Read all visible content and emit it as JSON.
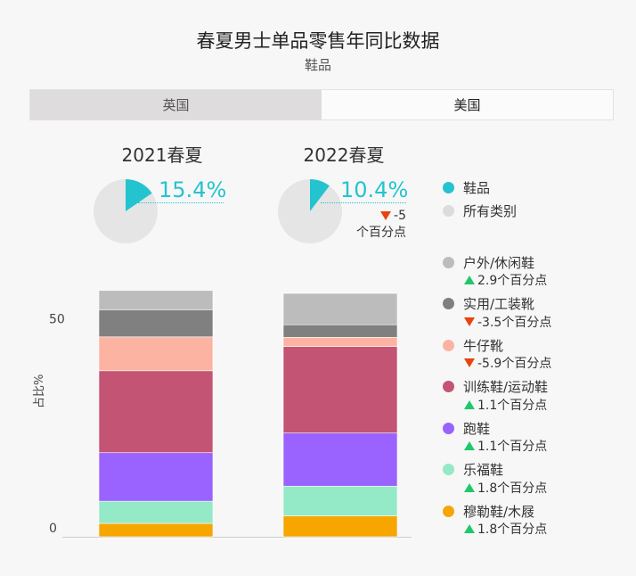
{
  "title": "春夏男士单品零售年同比数据",
  "subtitle": "鞋品",
  "tabs": [
    {
      "label": "英国",
      "active": false
    },
    {
      "label": "美国",
      "active": true
    }
  ],
  "periods": [
    {
      "label": "2021春夏",
      "pct_text": "15.4%",
      "share": 0.154
    },
    {
      "label": "2022春夏",
      "pct_text": "10.4%",
      "share": 0.104,
      "change_value": "-5",
      "change_unit": "个百分点",
      "change_dir": "down"
    }
  ],
  "legend_top": [
    {
      "label": "鞋品",
      "color": "#23c4cf"
    },
    {
      "label": "所有类别",
      "color": "#dcdcdc"
    }
  ],
  "colors": {
    "accent": "#23c4cf",
    "pie_bg": "#e5e5e5",
    "up": "#1ec96a",
    "down": "#e8440d"
  },
  "chart_data": {
    "type": "bar",
    "stacked": true,
    "categories": [
      "2021春夏",
      "2022春夏"
    ],
    "ylabel": "占比%",
    "yticks": [
      0,
      50
    ],
    "ylim": [
      0,
      60
    ],
    "series": [
      {
        "name": "穆勒鞋/木屐",
        "color": "#f7a600",
        "values": [
          3.2,
          5.0
        ],
        "change": "1.8个百分点",
        "dir": "up"
      },
      {
        "name": "乐福鞋",
        "color": "#94e9c6",
        "values": [
          5.3,
          7.1
        ],
        "change": "1.8个百分点",
        "dir": "up"
      },
      {
        "name": "跑鞋",
        "color": "#9a62ff",
        "values": [
          11.6,
          12.7
        ],
        "change": "1.1个百分点",
        "dir": "up"
      },
      {
        "name": "训练鞋/运动鞋",
        "color": "#c35474",
        "values": [
          19.6,
          20.7
        ],
        "change": "1.1个百分点",
        "dir": "up"
      },
      {
        "name": "牛仔靴",
        "color": "#fdb3a2",
        "values": [
          8.1,
          2.2
        ],
        "change": "-5.9个百分点",
        "dir": "down"
      },
      {
        "name": "实用/工装靴",
        "color": "#808080",
        "values": [
          6.5,
          3.0
        ],
        "change": "-3.5个百分点",
        "dir": "down"
      },
      {
        "name": "户外/休闲鞋",
        "color": "#bcbcbc",
        "values": [
          4.6,
          7.5
        ],
        "change": "2.9个百分点",
        "dir": "up"
      }
    ]
  }
}
